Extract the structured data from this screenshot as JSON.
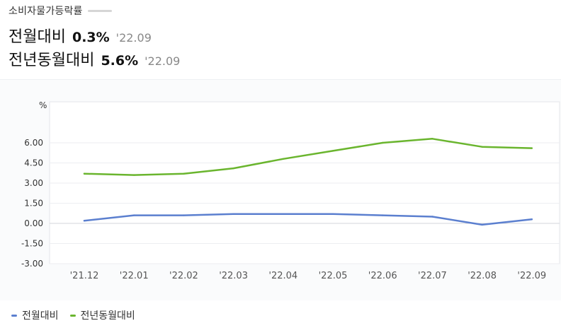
{
  "header": {
    "title": "소비자물가등락률",
    "stats": [
      {
        "label": "전월대비",
        "value": "0.3%",
        "date": "'22.09"
      },
      {
        "label": "전년동월대비",
        "value": "5.6%",
        "date": "'22.09"
      }
    ]
  },
  "chart_data": {
    "type": "line",
    "unit_label": "%",
    "categories": [
      "'21.12",
      "'22.01",
      "'22.02",
      "'22.03",
      "'22.04",
      "'22.05",
      "'22.06",
      "'22.07",
      "'22.08",
      "'22.09"
    ],
    "yticks": [
      "6.00",
      "4.50",
      "3.00",
      "1.50",
      "0.00",
      "-1.50",
      "-3.00"
    ],
    "ytick_values": [
      6.0,
      4.5,
      3.0,
      1.5,
      0.0,
      -1.5,
      -3.0
    ],
    "ylim": [
      -3.0,
      8.5
    ],
    "series": [
      {
        "name": "전월대비",
        "color": "#5b7fcf",
        "values": [
          0.2,
          0.6,
          0.6,
          0.7,
          0.7,
          0.7,
          0.6,
          0.5,
          -0.1,
          0.3
        ]
      },
      {
        "name": "전년동월대비",
        "color": "#6ab52e",
        "values": [
          3.7,
          3.6,
          3.7,
          4.1,
          4.8,
          5.4,
          6.0,
          6.3,
          5.7,
          5.6
        ]
      }
    ],
    "grid": true,
    "legend_position": "bottom-left"
  }
}
